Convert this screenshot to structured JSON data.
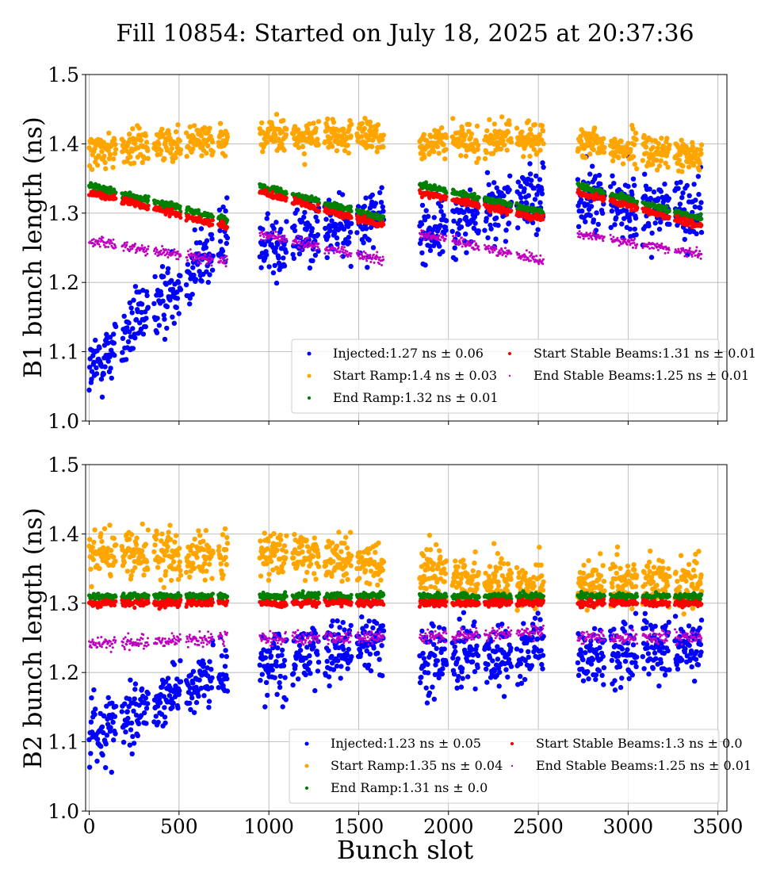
{
  "figure": {
    "title": "Fill 10854: Started on July 18, 2025 at 20:37:36",
    "xlabel": "Bunch slot"
  },
  "chart_data": [
    {
      "type": "scatter",
      "id": "b1",
      "ylabel": "B1 bunch length (ns)",
      "xlim": [
        -20,
        3550
      ],
      "ylim": [
        1.0,
        1.5
      ],
      "xticks": [
        0,
        500,
        1000,
        1500,
        2000,
        2500,
        3000,
        3500
      ],
      "yticks": [
        1.0,
        1.1,
        1.2,
        1.3,
        1.4,
        1.5
      ],
      "x_tick_labels_shown": false,
      "grid": true,
      "legend_position": "lower-right",
      "bunch_trains": [
        [
          0,
          770
        ],
        [
          950,
          1660
        ],
        [
          1840,
          2560
        ],
        [
          2720,
          3430
        ]
      ],
      "series": [
        {
          "name": "Injected",
          "legend": "Injected:1.27 ns ± 0.06",
          "color": "#0000ff",
          "marker_size": "large",
          "train_start_values": [
            1.07,
            1.25,
            1.27,
            1.32
          ],
          "train_end_values": [
            1.27,
            1.3,
            1.33,
            1.3
          ],
          "spread": 0.04,
          "mean": 1.27,
          "std": 0.06
        },
        {
          "name": "Start Ramp",
          "legend": "Start Ramp:1.4 ns ± 0.03",
          "color": "#ffa500",
          "marker_size": "large",
          "train_start_values": [
            1.39,
            1.41,
            1.4,
            1.4
          ],
          "train_end_values": [
            1.41,
            1.41,
            1.41,
            1.38
          ],
          "spread": 0.02,
          "mean": 1.4,
          "std": 0.03
        },
        {
          "name": "End Ramp",
          "legend": "End Ramp:1.32 ns ± 0.01",
          "color": "#008000",
          "marker_size": "medium",
          "train_start_values": [
            1.34,
            1.34,
            1.34,
            1.34
          ],
          "train_end_values": [
            1.29,
            1.29,
            1.3,
            1.29
          ],
          "spread": 0.004,
          "mean": 1.32,
          "std": 0.01
        },
        {
          "name": "Start Stable Beams",
          "legend": "Start Stable Beams:1.31 ns ± 0.01",
          "color": "#ff0000",
          "marker_size": "medium",
          "train_start_values": [
            1.33,
            1.33,
            1.33,
            1.33
          ],
          "train_end_values": [
            1.28,
            1.28,
            1.29,
            1.28
          ],
          "spread": 0.004,
          "mean": 1.31,
          "std": 0.01
        },
        {
          "name": "End Stable Beams",
          "legend": "End Stable Beams:1.25 ns ± 0.01",
          "color": "#bf00bf",
          "marker_size": "small",
          "train_start_values": [
            1.26,
            1.27,
            1.27,
            1.27
          ],
          "train_end_values": [
            1.23,
            1.23,
            1.23,
            1.24
          ],
          "spread": 0.006,
          "mean": 1.25,
          "std": 0.01
        }
      ]
    },
    {
      "type": "scatter",
      "id": "b2",
      "ylabel": "B2 bunch length (ns)",
      "xlim": [
        -20,
        3550
      ],
      "ylim": [
        1.0,
        1.5
      ],
      "xticks": [
        0,
        500,
        1000,
        1500,
        2000,
        2500,
        3000,
        3500
      ],
      "yticks": [
        1.0,
        1.1,
        1.2,
        1.3,
        1.4,
        1.5
      ],
      "x_tick_labels_shown": true,
      "grid": true,
      "legend_position": "lower-right",
      "bunch_trains": [
        [
          0,
          770
        ],
        [
          950,
          1660
        ],
        [
          1840,
          2560
        ],
        [
          2720,
          3430
        ]
      ],
      "series": [
        {
          "name": "Injected",
          "legend": "Injected:1.23 ns ± 0.05",
          "color": "#0000ff",
          "marker_size": "large",
          "train_start_values": [
            1.11,
            1.21,
            1.22,
            1.22
          ],
          "train_end_values": [
            1.21,
            1.25,
            1.23,
            1.24
          ],
          "spread": 0.04,
          "mean": 1.23,
          "std": 0.05
        },
        {
          "name": "Start Ramp",
          "legend": "Start Ramp:1.35 ns ± 0.04",
          "color": "#ffa500",
          "marker_size": "large",
          "train_start_values": [
            1.37,
            1.37,
            1.35,
            1.33
          ],
          "train_end_values": [
            1.37,
            1.36,
            1.32,
            1.33
          ],
          "spread": 0.03,
          "mean": 1.35,
          "std": 0.04
        },
        {
          "name": "End Ramp",
          "legend": "End Ramp:1.31 ns ± 0.0",
          "color": "#008000",
          "marker_size": "medium",
          "train_start_values": [
            1.31,
            1.31,
            1.31,
            1.31
          ],
          "train_end_values": [
            1.31,
            1.31,
            1.31,
            1.31
          ],
          "spread": 0.004,
          "mean": 1.31,
          "std": 0.0
        },
        {
          "name": "Start Stable Beams",
          "legend": "Start Stable Beams:1.3 ns ± 0.0",
          "color": "#ff0000",
          "marker_size": "medium",
          "train_start_values": [
            1.3,
            1.3,
            1.3,
            1.3
          ],
          "train_end_values": [
            1.3,
            1.3,
            1.3,
            1.3
          ],
          "spread": 0.004,
          "mean": 1.3,
          "std": 0.0
        },
        {
          "name": "End Stable Beams",
          "legend": "End Stable Beams:1.25 ns ± 0.01",
          "color": "#bf00bf",
          "marker_size": "small",
          "train_start_values": [
            1.24,
            1.25,
            1.25,
            1.25
          ],
          "train_end_values": [
            1.25,
            1.25,
            1.26,
            1.25
          ],
          "spread": 0.008,
          "mean": 1.25,
          "std": 0.01
        }
      ]
    }
  ]
}
